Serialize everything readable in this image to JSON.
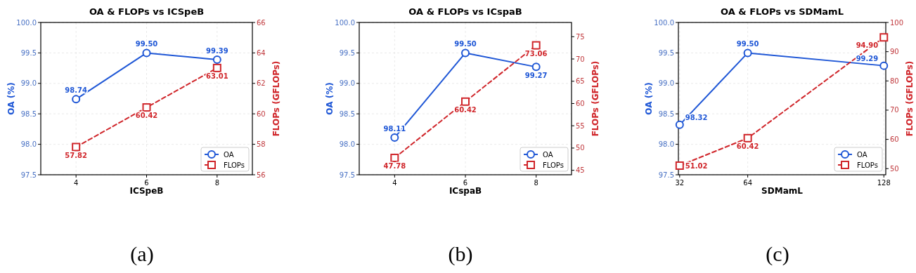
{
  "chart_data": [
    {
      "type": "line",
      "title": "OA & FLOPs vs ICSpeB",
      "xlabel": "ICSpeB",
      "ylabel": "OA (%)",
      "y2label": "FLOPs (GFLOPs)",
      "x": [
        4,
        6,
        8
      ],
      "xlim": [
        3,
        9
      ],
      "xticks": [
        4,
        6,
        8
      ],
      "ylim": [
        97.5,
        100
      ],
      "yticks": [
        {
          "value": 97.5,
          "label": "97.5"
        },
        {
          "value": 98,
          "label": "98.0"
        },
        {
          "value": 98.5,
          "label": "98.5"
        },
        {
          "value": 99,
          "label": "99.0"
        },
        {
          "value": 99.5,
          "label": "99.5"
        },
        {
          "value": 100,
          "label": "100.0"
        }
      ],
      "y2lim": [
        56,
        66
      ],
      "y2ticks": [
        56,
        58,
        60,
        62,
        64,
        66
      ],
      "grid": true,
      "legend": "bottom right",
      "annotations": [
        "(a)"
      ],
      "series": [
        {
          "name": "OA",
          "color": "#1f57d6",
          "values": [
            98.74,
            99.5,
            99.39
          ],
          "value_labels": [
            "98.74",
            "99.50",
            "99.39"
          ],
          "marker": "circle",
          "line_style": "solid"
        },
        {
          "name": "FLOPs",
          "color": "#d0262b",
          "axis": "y2",
          "values": [
            57.82,
            60.42,
            63.01
          ],
          "value_labels": [
            "57.82",
            "60.42",
            "63.01"
          ],
          "marker": "square",
          "line_style": "dashed"
        }
      ]
    },
    {
      "type": "line",
      "title": "OA & FLOPs vs ICspaB",
      "xlabel": "ICspaB",
      "ylabel": "OA (%)",
      "y2label": "FLOPs (GFLOPs)",
      "x": [
        4,
        6,
        8
      ],
      "xlim": [
        3,
        9
      ],
      "xticks": [
        4,
        6,
        8
      ],
      "ylim": [
        97.5,
        100
      ],
      "yticks": [
        {
          "value": 97.5,
          "label": "97.5"
        },
        {
          "value": 98,
          "label": "98.0"
        },
        {
          "value": 98.5,
          "label": "98.5"
        },
        {
          "value": 99,
          "label": "99.0"
        },
        {
          "value": 99.5,
          "label": "99.5"
        },
        {
          "value": 100,
          "label": "100.0"
        }
      ],
      "y2lim": [
        44,
        78.2
      ],
      "y2ticks": [
        45,
        50,
        55,
        60,
        65,
        70,
        75
      ],
      "grid": true,
      "legend": "bottom right",
      "annotations": [
        "(b)"
      ],
      "series": [
        {
          "name": "OA",
          "color": "#1f57d6",
          "values": [
            98.11,
            99.5,
            99.27
          ],
          "value_labels": [
            "98.11",
            "99.50",
            "99.27"
          ],
          "marker": "circle",
          "line_style": "solid"
        },
        {
          "name": "FLOPs",
          "color": "#d0262b",
          "axis": "y2",
          "values": [
            47.78,
            60.42,
            73.06
          ],
          "value_labels": [
            "47.78",
            "60.42",
            "73.06"
          ],
          "marker": "square",
          "line_style": "dashed"
        }
      ]
    },
    {
      "type": "line",
      "title": "OA & FLOPs vs SDMamL",
      "xlabel": "SDMamL",
      "ylabel": "OA (%)",
      "y2label": "FLOPs (GFLOPs)",
      "x": [
        32,
        64,
        128
      ],
      "xlim": [
        31.4,
        128.9
      ],
      "xticks": [
        32,
        64,
        128
      ],
      "ylim": [
        97.5,
        100
      ],
      "yticks": [
        {
          "value": 97.5,
          "label": "97.5"
        },
        {
          "value": 98,
          "label": "98.0"
        },
        {
          "value": 98.5,
          "label": "98.5"
        },
        {
          "value": 99,
          "label": "99.0"
        },
        {
          "value": 99.5,
          "label": "99.5"
        },
        {
          "value": 100,
          "label": "100.0"
        }
      ],
      "y2lim": [
        47.9,
        100
      ],
      "y2ticks": [
        50,
        60,
        70,
        80,
        90,
        100
      ],
      "grid": true,
      "legend": "bottom right",
      "annotations": [
        "(c)"
      ],
      "series": [
        {
          "name": "OA",
          "color": "#1f57d6",
          "values": [
            98.32,
            99.5,
            99.29
          ],
          "value_labels": [
            "98.32",
            "99.50",
            "99.29"
          ],
          "marker": "circle",
          "line_style": "solid"
        },
        {
          "name": "FLOPs",
          "color": "#d0262b",
          "axis": "y2",
          "values": [
            51.02,
            60.42,
            94.9
          ],
          "value_labels": [
            "51.02",
            "60.42",
            "94.90"
          ],
          "marker": "square",
          "line_style": "dashed"
        }
      ]
    }
  ]
}
